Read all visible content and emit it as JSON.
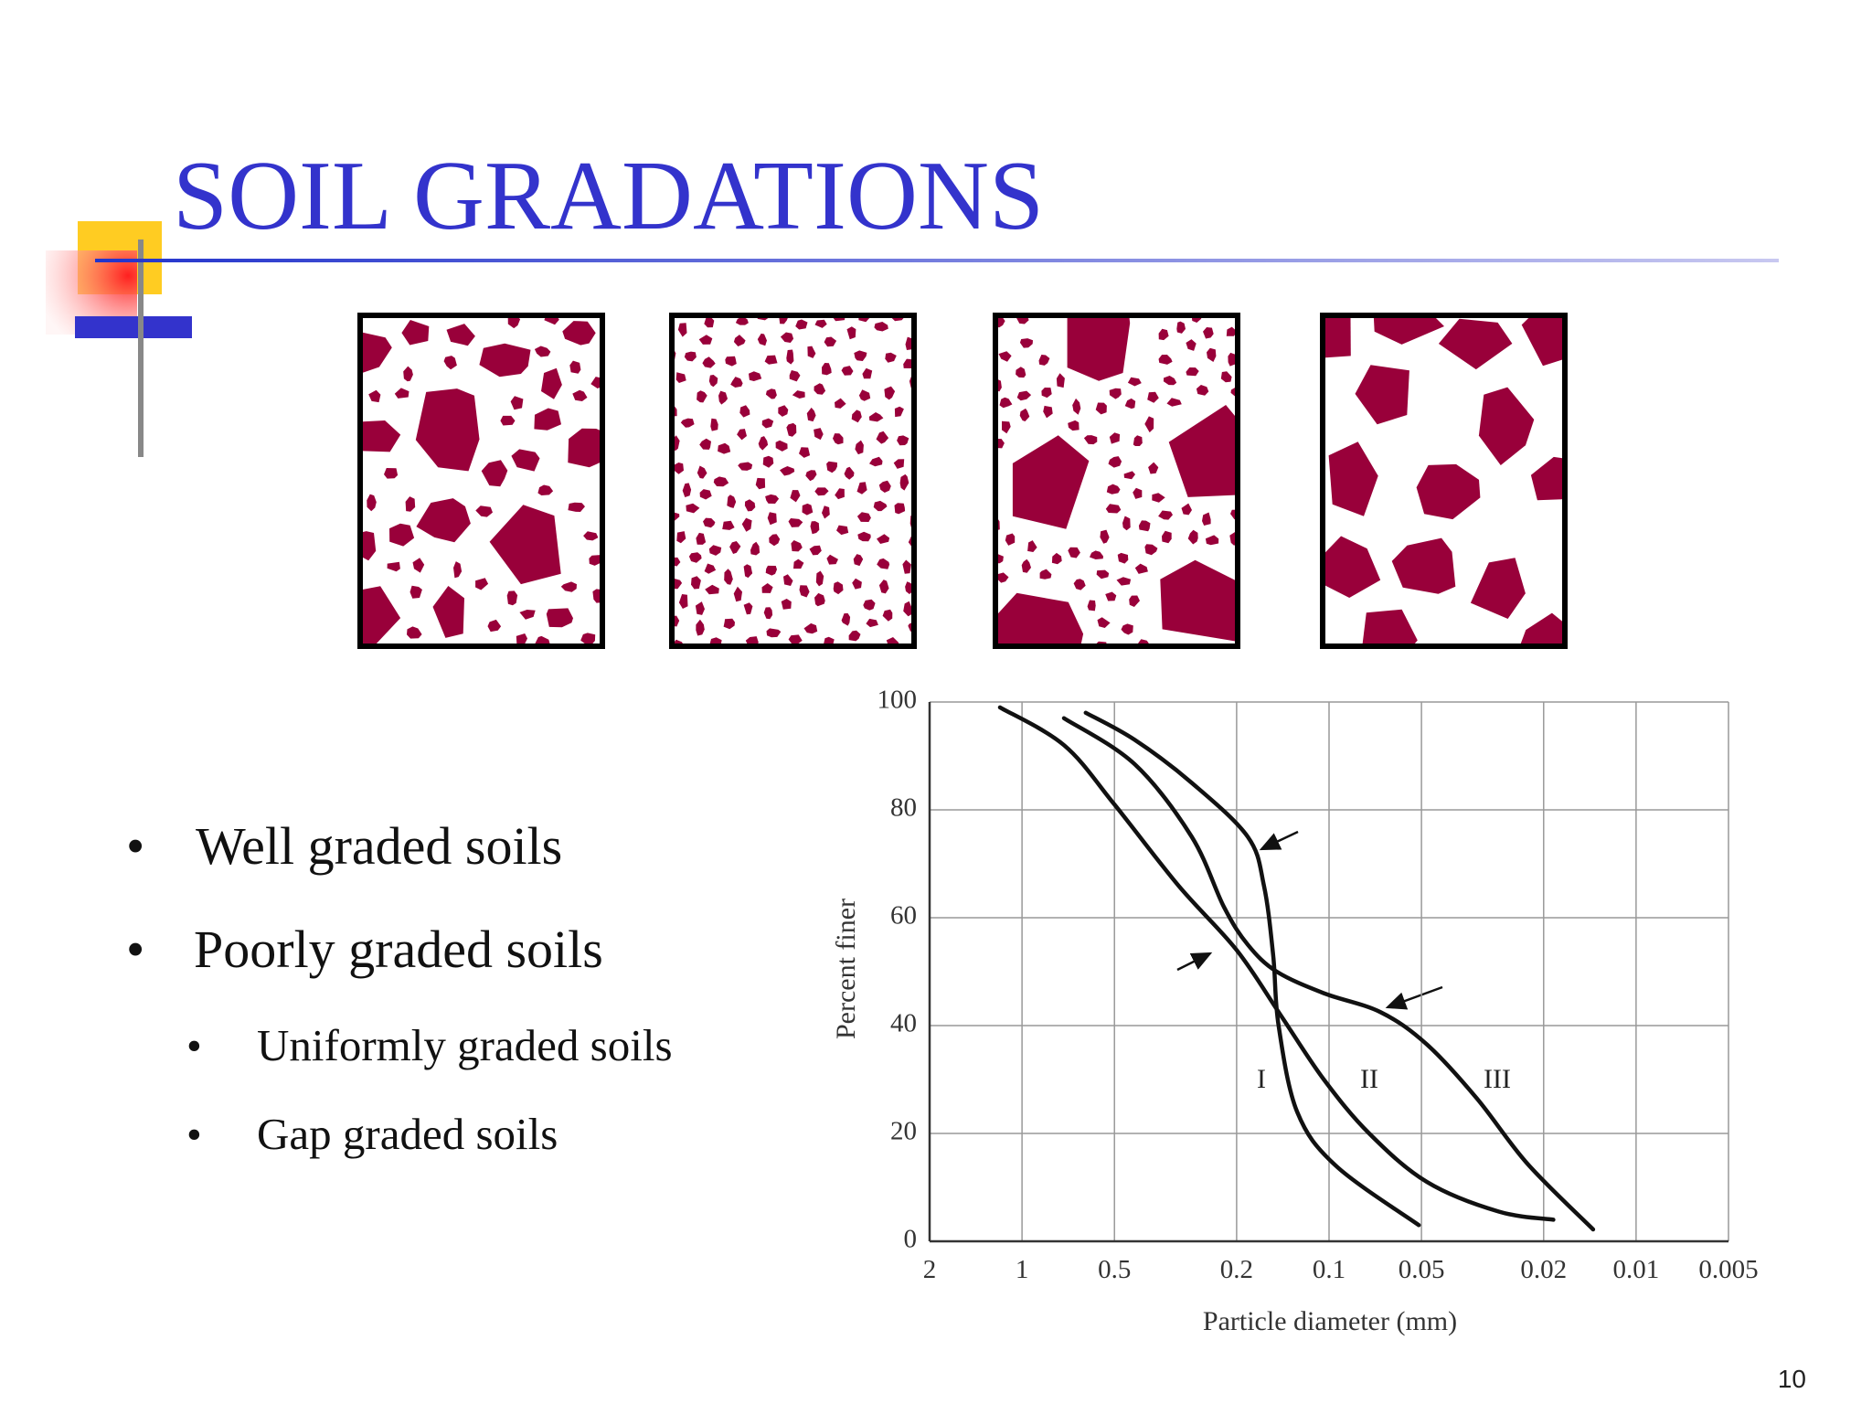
{
  "title": "SOIL GRADATIONS",
  "bullets": [
    "Well graded soils",
    "Poorly graded soils"
  ],
  "sub_bullets": [
    "Uniformly graded soils",
    "Gap graded soils"
  ],
  "page_number": "10",
  "chart_data": {
    "type": "line",
    "xlabel": "Particle diameter (mm)",
    "ylabel": "Percent finer",
    "xscale": "log",
    "xlim": [
      2,
      0.005
    ],
    "xticks": [
      2,
      1,
      0.5,
      0.2,
      0.1,
      0.05,
      0.02,
      0.01,
      0.005
    ],
    "ylim": [
      0,
      100
    ],
    "yticks": [
      0,
      20,
      40,
      60,
      80,
      100
    ],
    "grid": true,
    "series": [
      {
        "name": "I",
        "color": "#111111",
        "x": [
          0.62,
          0.43,
          0.28,
          0.184,
          0.163,
          0.152,
          0.146,
          0.127,
          0.095,
          0.051
        ],
        "values": [
          98,
          93,
          85,
          75,
          66,
          53,
          40,
          24,
          14,
          3
        ]
      },
      {
        "name": "II",
        "color": "#111111",
        "x": [
          1.18,
          0.73,
          0.5,
          0.31,
          0.2,
          0.144,
          0.104,
          0.074,
          0.048,
          0.028,
          0.0186
        ],
        "values": [
          99,
          92,
          81,
          66,
          54,
          42,
          30,
          20,
          11,
          5.5,
          4
        ]
      },
      {
        "name": "III",
        "color": "#111111",
        "x": [
          0.73,
          0.43,
          0.28,
          0.22,
          0.184,
          0.148,
          0.104,
          0.068,
          0.048,
          0.033,
          0.0226,
          0.0138
        ],
        "values": [
          97,
          88.5,
          75,
          62,
          55,
          50,
          46,
          42.5,
          36.5,
          26.5,
          14.4,
          2.2
        ]
      }
    ]
  }
}
